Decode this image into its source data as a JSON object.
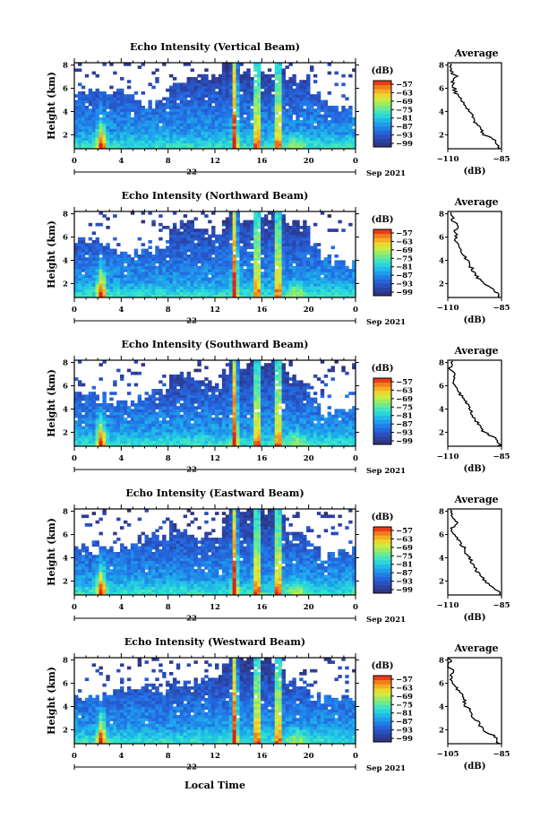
{
  "chart_data": {
    "type": "heatmap",
    "xaxis_title": "Local Time",
    "date_label": "Sep 2021",
    "day_label": "22",
    "x_ticks": [
      "0",
      "4",
      "8",
      "12",
      "16",
      "20",
      "0"
    ],
    "x_range_hours": [
      0,
      24
    ],
    "y_label": "Height (km)",
    "y_ticks": [
      "2",
      "4",
      "6",
      "8"
    ],
    "y_range_km": [
      0.8,
      8.2
    ],
    "colorbar_unit": "(dB)",
    "colorbar_ticks": [
      "-57",
      "-63",
      "-69",
      "-75",
      "-81",
      "-87",
      "-93",
      "-99"
    ],
    "colorbar_range_db": [
      -100,
      -55
    ],
    "profile_title": "Average",
    "profile_unit": "(dB)",
    "panels": [
      {
        "title": "Echo Intensity (Vertical Beam)",
        "profile_x_ticks": [
          "-110",
          "-85"
        ],
        "profile_xlim": [
          -110,
          -85
        ],
        "avg_profile": {
          "height_km": [
            1,
            1.5,
            2,
            3,
            4,
            5,
            5.5,
            6,
            6.5,
            7,
            7.5,
            8
          ],
          "db": [
            -86,
            -88,
            -93,
            -97,
            -100,
            -103,
            -106,
            -107,
            -108,
            -106,
            -109,
            -108
          ]
        }
      },
      {
        "title": "Echo Intensity (Northward Beam)",
        "profile_x_ticks": [
          "-110",
          "-85"
        ],
        "profile_xlim": [
          -110,
          -85
        ],
        "avg_profile": {
          "height_km": [
            1,
            1.5,
            2,
            3,
            4,
            5,
            5.5,
            6,
            6.5,
            7,
            7.5,
            8
          ],
          "db": [
            -86,
            -89,
            -94,
            -98,
            -101,
            -104,
            -106,
            -106,
            -107,
            -105,
            -108,
            -108
          ]
        }
      },
      {
        "title": "Echo Intensity (Southward Beam)",
        "profile_x_ticks": [
          "-110",
          "-85"
        ],
        "profile_xlim": [
          -110,
          -85
        ],
        "avg_profile": {
          "height_km": [
            1,
            1.5,
            2,
            3,
            4,
            5,
            5.5,
            6,
            6.5,
            7,
            7.5,
            8
          ],
          "db": [
            -86,
            -88,
            -93,
            -97,
            -100,
            -103,
            -105,
            -107,
            -108,
            -106,
            -109,
            -108
          ]
        }
      },
      {
        "title": "Echo Intensity (Eastward Beam)",
        "profile_x_ticks": [
          "-110",
          "-85"
        ],
        "profile_xlim": [
          -110,
          -85
        ],
        "avg_profile": {
          "height_km": [
            1,
            1.5,
            2,
            3,
            4,
            5,
            5.5,
            6,
            6.5,
            7,
            7.5,
            8
          ],
          "db": [
            -86,
            -89,
            -93,
            -97,
            -100,
            -103,
            -105,
            -107,
            -108,
            -106,
            -108,
            -109
          ]
        }
      },
      {
        "title": "Echo Intensity (Westward Beam)",
        "profile_x_ticks": [
          "-105",
          "-85"
        ],
        "profile_xlim": [
          -105,
          -85
        ],
        "avg_profile": {
          "height_km": [
            1,
            1.5,
            2,
            3,
            4,
            5,
            5.5,
            6,
            6.5,
            7,
            7.5,
            8
          ],
          "db": [
            -86,
            -88,
            -92,
            -95,
            -98,
            -100,
            -102,
            -103,
            -104,
            -103,
            -105,
            -104
          ]
        }
      }
    ]
  }
}
